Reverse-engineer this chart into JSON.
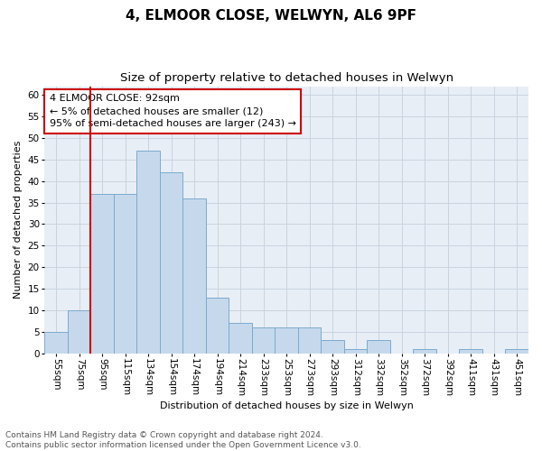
{
  "title1": "4, ELMOOR CLOSE, WELWYN, AL6 9PF",
  "title2": "Size of property relative to detached houses in Welwyn",
  "xlabel": "Distribution of detached houses by size in Welwyn",
  "ylabel": "Number of detached properties",
  "categories": [
    "55sqm",
    "75sqm",
    "95sqm",
    "115sqm",
    "134sqm",
    "154sqm",
    "174sqm",
    "194sqm",
    "214sqm",
    "233sqm",
    "253sqm",
    "273sqm",
    "293sqm",
    "312sqm",
    "332sqm",
    "352sqm",
    "372sqm",
    "392sqm",
    "411sqm",
    "431sqm",
    "451sqm"
  ],
  "values": [
    5,
    10,
    37,
    37,
    47,
    42,
    36,
    13,
    7,
    6,
    6,
    6,
    3,
    1,
    3,
    0,
    1,
    0,
    1,
    0,
    1
  ],
  "bar_color": "#c6d9ec",
  "bar_edge_color": "#7baacf",
  "vline_x": 1.5,
  "vline_color": "#cc0000",
  "annotation_text": "4 ELMOOR CLOSE: 92sqm\n← 5% of detached houses are smaller (12)\n95% of semi-detached houses are larger (243) →",
  "annotation_box_color": "#ffffff",
  "annotation_box_edge": "#cc0000",
  "ylim": [
    0,
    62
  ],
  "yticks": [
    0,
    5,
    10,
    15,
    20,
    25,
    30,
    35,
    40,
    45,
    50,
    55,
    60
  ],
  "grid_color": "#c8d4e0",
  "bg_color": "#e8eef5",
  "footnote": "Contains HM Land Registry data © Crown copyright and database right 2024.\nContains public sector information licensed under the Open Government Licence v3.0.",
  "title_fontsize": 11,
  "subtitle_fontsize": 9.5,
  "axis_label_fontsize": 8,
  "tick_fontsize": 7.5,
  "annot_fontsize": 8,
  "footnote_fontsize": 6.5
}
